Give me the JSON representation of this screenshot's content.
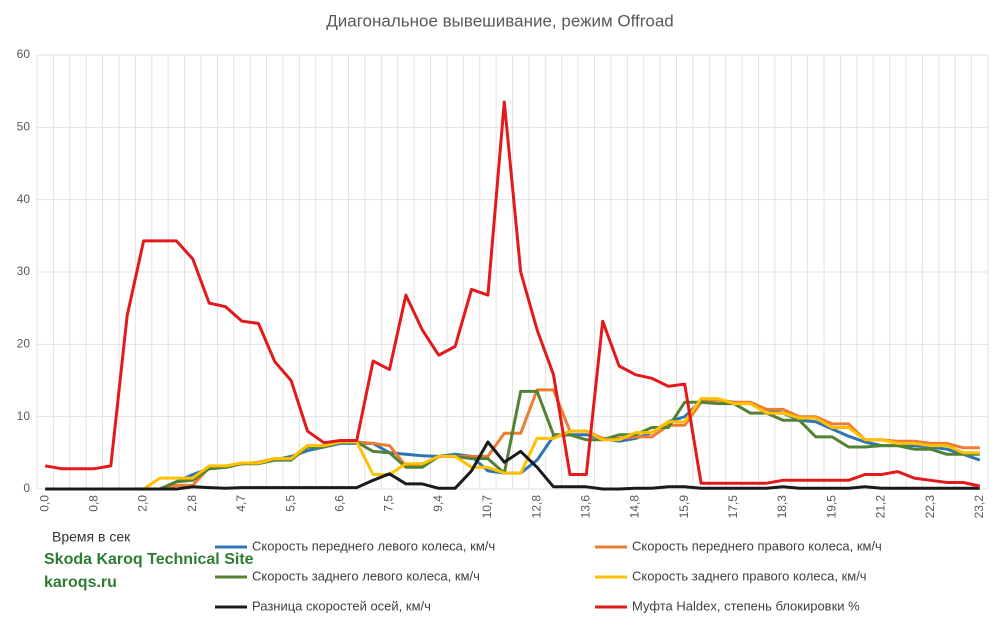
{
  "chart_data": {
    "type": "line",
    "title": "Диагональное вывешивание, режим Offroad",
    "x_label": "Время в сек",
    "annotations": [
      "Skoda Karoq Technical Site",
      "karoqs.ru"
    ],
    "categories": [
      "0,0",
      null,
      null,
      "0,8",
      null,
      null,
      "2,0",
      null,
      null,
      "2,8",
      null,
      null,
      "4,7",
      null,
      null,
      "5,5",
      null,
      null,
      "6,6",
      null,
      null,
      "7,5",
      null,
      null,
      "9,4",
      null,
      null,
      "10,7",
      null,
      null,
      "12,8",
      null,
      null,
      "13,6",
      null,
      null,
      "14,8",
      null,
      null,
      "15,9",
      null,
      null,
      "17,5",
      null,
      null,
      "18,3",
      null,
      null,
      "19,5",
      null,
      null,
      "21,2",
      null,
      null,
      "22,3",
      null,
      null,
      "23,2"
    ],
    "ylim": [
      0,
      60
    ],
    "yticks": [
      0,
      10,
      20,
      30,
      40,
      50,
      60
    ],
    "grid": true,
    "series": [
      {
        "name": "Скорость переднего левого колеса, км/ч",
        "color": "#2e75b6",
        "values": [
          0,
          0,
          0,
          0,
          0,
          0,
          0,
          0,
          1,
          2,
          2.8,
          3,
          3.5,
          3.6,
          4,
          4.5,
          5.3,
          5.8,
          6.3,
          6.3,
          6.3,
          5,
          4.8,
          4.6,
          4.5,
          4.8,
          4.5,
          2.5,
          2.2,
          2.2,
          4,
          7.3,
          7.5,
          7.5,
          7,
          6.6,
          7,
          7.8,
          9.3,
          10,
          12.2,
          12.3,
          12,
          11.8,
          11,
          10.5,
          9.5,
          9.3,
          8.3,
          7.3,
          6.5,
          6,
          6,
          6,
          5.8,
          5.5,
          4.8,
          4
        ]
      },
      {
        "name": "Скорость переднего правого колеса, км/ч",
        "color": "#ed7d31",
        "values": [
          0,
          0,
          0,
          0,
          0,
          0,
          0,
          0,
          0.5,
          0.5,
          3,
          3,
          3.5,
          3.7,
          4.2,
          4.2,
          6,
          6,
          6.5,
          6.5,
          6.3,
          6,
          3.2,
          3.2,
          4.5,
          4.5,
          4.5,
          4.5,
          7.7,
          7.7,
          13.7,
          13.7,
          8,
          8,
          7,
          7,
          7.2,
          7.2,
          8.8,
          8.8,
          12,
          12.3,
          12,
          12,
          11,
          11,
          10,
          10,
          9,
          9,
          6.8,
          6.8,
          6.6,
          6.6,
          6.3,
          6.3,
          5.7,
          5.7
        ]
      },
      {
        "name": "Скорость заднего левого колеса, км/ч",
        "color": "#548235",
        "values": [
          0,
          0,
          0,
          0,
          0,
          0,
          0,
          0,
          1,
          1.2,
          2.8,
          3,
          3.5,
          3.5,
          4,
          4,
          5.8,
          5.8,
          6.5,
          6.5,
          5.2,
          5,
          3,
          3,
          4.5,
          4.5,
          4.2,
          4.2,
          2.2,
          13.5,
          13.5,
          7.5,
          7.5,
          6.8,
          6.8,
          7.5,
          7.5,
          8.5,
          8.5,
          12,
          12,
          11.8,
          11.8,
          10.5,
          10.5,
          9.5,
          9.5,
          7.2,
          7.2,
          5.8,
          5.8,
          6,
          6,
          5.5,
          5.5,
          4.8,
          4.8,
          4.8
        ]
      },
      {
        "name": "Скорость заднего правого колеса, км/ч",
        "color": "#ffc000",
        "values": [
          0,
          0,
          0,
          0,
          0,
          0,
          0,
          1.5,
          1.5,
          1.5,
          3.2,
          3.2,
          3.6,
          3.6,
          4.2,
          4.2,
          6,
          6,
          6.5,
          6.5,
          2,
          2,
          3.5,
          3.5,
          4.5,
          4.5,
          3,
          3,
          2.2,
          2.2,
          7,
          7,
          8,
          8,
          6.8,
          6.8,
          7.8,
          7.8,
          9.3,
          9.3,
          12.5,
          12.5,
          11.8,
          11.8,
          10.5,
          10.5,
          9.8,
          9.8,
          8.5,
          8.5,
          6.8,
          6.8,
          6.3,
          6.3,
          6,
          6,
          5,
          5
        ]
      },
      {
        "name": "Разница скоростей осей, км/ч",
        "color": "#1a1a1a",
        "values": [
          0,
          0,
          0,
          0,
          0,
          0,
          0,
          0,
          0,
          0.3,
          0.2,
          0.1,
          0.2,
          0.2,
          0.2,
          0.2,
          0.2,
          0.2,
          0.2,
          0.2,
          1.2,
          2.1,
          0.7,
          0.7,
          0.1,
          0.1,
          2.5,
          6.5,
          3.7,
          5.2,
          3,
          0.3,
          0.3,
          0.3,
          0,
          0,
          0.1,
          0.1,
          0.3,
          0.3,
          0.1,
          0.1,
          0.1,
          0.1,
          0.1,
          0.3,
          0.1,
          0.1,
          0.1,
          0.1,
          0.3,
          0.1,
          0.1,
          0.1,
          0.1,
          0.1,
          0.1,
          0.1
        ]
      },
      {
        "name": "Муфта Haldex, степень блокировки %",
        "color": "#e31a1c",
        "values": [
          3.2,
          2.8,
          2.8,
          2.8,
          3.2,
          24,
          34.3,
          34.3,
          34.3,
          31.8,
          25.7,
          25.2,
          23.2,
          22.9,
          17.6,
          15,
          8,
          6.4,
          6.7,
          6.7,
          17.7,
          16.5,
          26.8,
          22,
          18.5,
          19.7,
          27.6,
          26.8,
          53.5,
          30,
          22,
          15.8,
          2,
          2,
          23.2,
          17,
          15.8,
          15.3,
          14.2,
          14.5,
          0.8,
          0.8,
          0.8,
          0.8,
          0.8,
          1.2,
          1.2,
          1.2,
          1.2,
          1.2,
          2,
          2,
          2.4,
          1.5,
          1.2,
          0.9,
          0.9,
          0.4
        ]
      }
    ]
  }
}
